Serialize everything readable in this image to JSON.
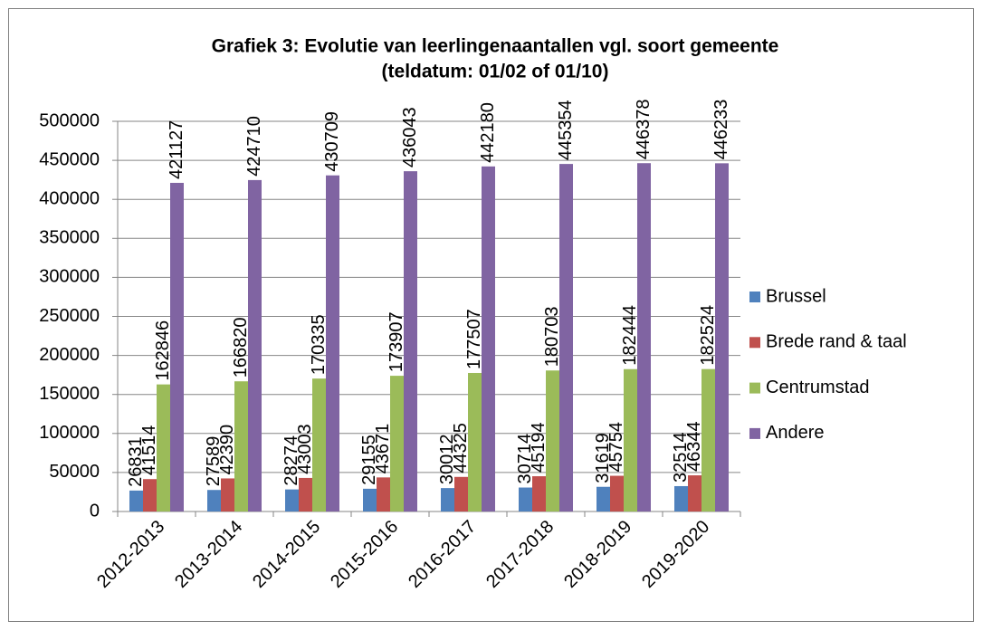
{
  "chart_data": {
    "type": "bar",
    "title": "Grafiek 3: Evolutie van leerlingenaantallen vgl. soort gemeente",
    "subtitle": "(teldatum: 01/02 of 01/10)",
    "categories": [
      "2012-2013",
      "2013-2014",
      "2014-2015",
      "2015-2016",
      "2016-2017",
      "2017-2018",
      "2018-2019",
      "2019-2020"
    ],
    "series": [
      {
        "name": "Brussel",
        "color": "#4f81bd",
        "values": [
          26831,
          27589,
          28274,
          29155,
          30012,
          30714,
          31619,
          32514
        ]
      },
      {
        "name": "Brede rand & taal",
        "color": "#c0504d",
        "values": [
          41514,
          42390,
          43003,
          43671,
          44325,
          45194,
          45754,
          46344
        ]
      },
      {
        "name": "Centrumstad",
        "color": "#9bbb59",
        "values": [
          162846,
          166820,
          170335,
          173907,
          177507,
          180703,
          182444,
          182524
        ]
      },
      {
        "name": "Andere",
        "color": "#8064a2",
        "values": [
          421127,
          424710,
          430709,
          436043,
          442180,
          445354,
          446378,
          446233
        ]
      }
    ],
    "ylim": [
      0,
      500000
    ],
    "yticks": [
      0,
      50000,
      100000,
      150000,
      200000,
      250000,
      300000,
      350000,
      400000,
      450000,
      500000
    ],
    "grid": true,
    "legend": "right"
  }
}
